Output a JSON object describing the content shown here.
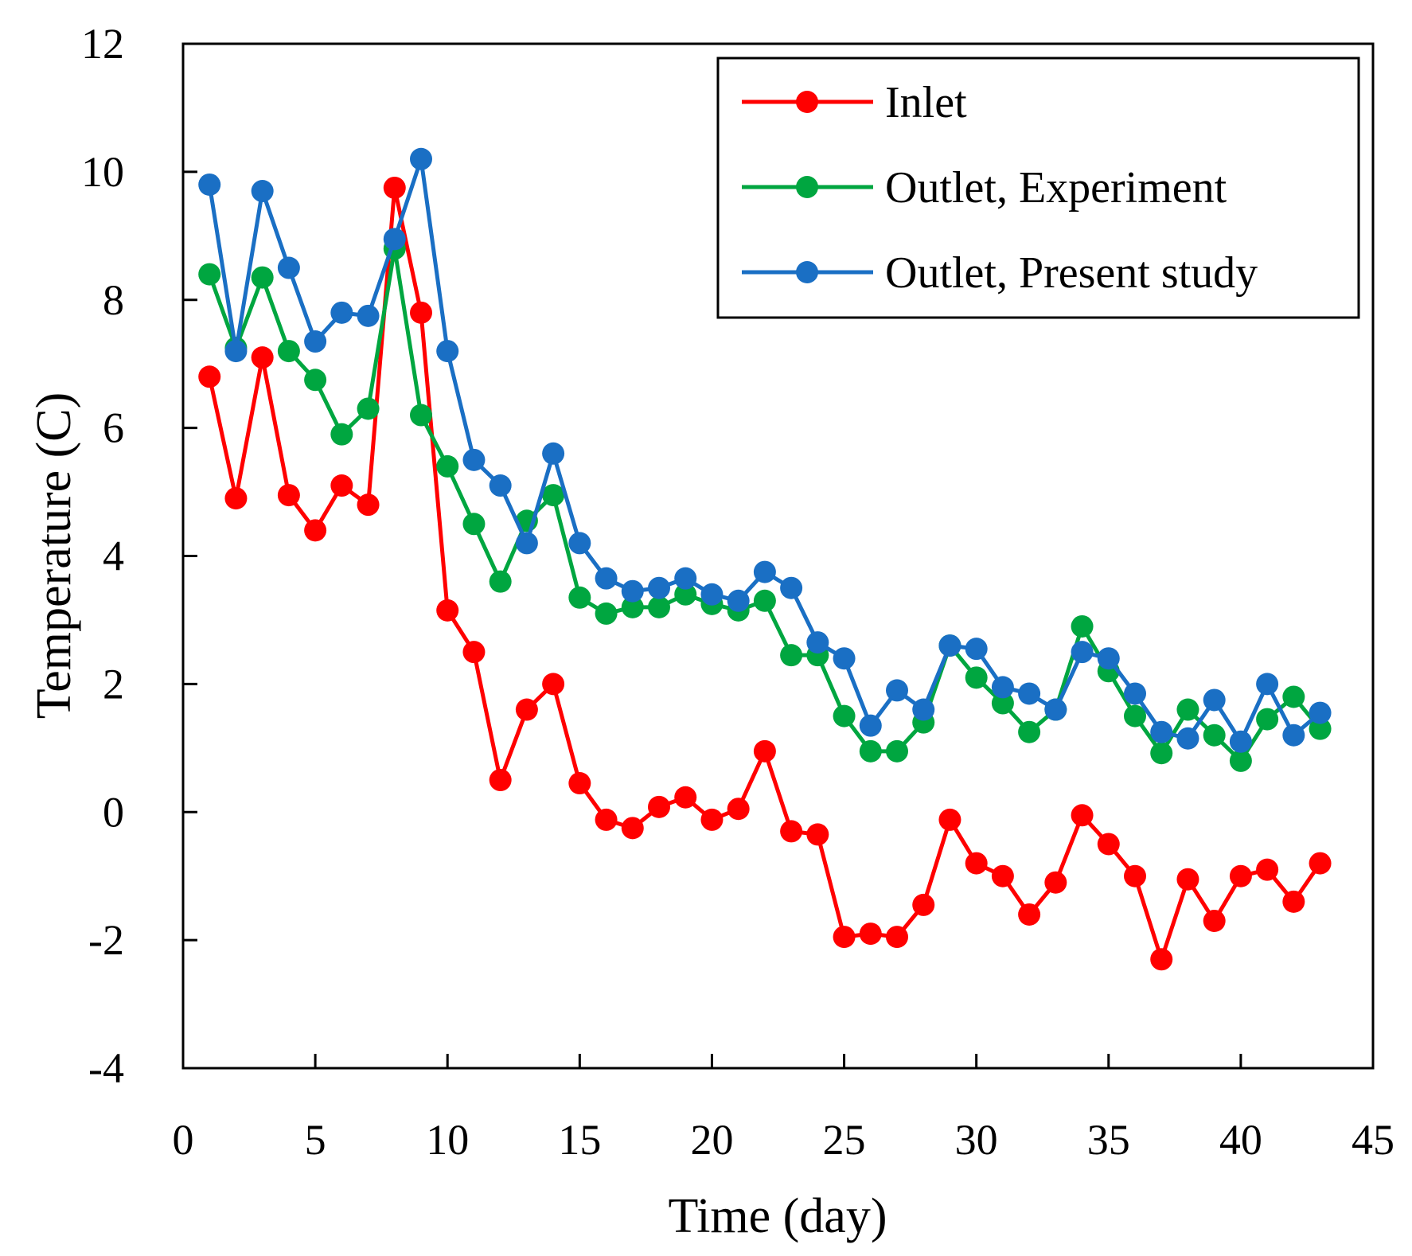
{
  "chart_data": {
    "type": "line",
    "xlabel": "Time (day)",
    "ylabel": "Temperature (C)",
    "xlim": [
      0,
      45
    ],
    "ylim": [
      -4,
      12
    ],
    "xticks": [
      0,
      5,
      10,
      15,
      20,
      25,
      30,
      35,
      40,
      45
    ],
    "yticks": [
      -4,
      -2,
      0,
      2,
      4,
      6,
      8,
      10,
      12
    ],
    "grid": false,
    "legend_position": "top-right",
    "x": [
      1,
      2,
      3,
      4,
      5,
      6,
      7,
      8,
      9,
      10,
      11,
      12,
      13,
      14,
      15,
      16,
      17,
      18,
      19,
      20,
      21,
      22,
      23,
      24,
      25,
      26,
      27,
      28,
      29,
      30,
      31,
      32,
      33,
      34,
      35,
      36,
      37,
      38,
      39,
      40,
      41,
      42,
      43
    ],
    "series": [
      {
        "name": "Inlet",
        "color": "#ff0000",
        "values": [
          6.8,
          4.9,
          7.1,
          4.95,
          4.4,
          5.1,
          4.8,
          9.75,
          7.8,
          3.15,
          2.5,
          0.5,
          1.6,
          2.0,
          0.45,
          -0.12,
          -0.25,
          0.08,
          0.23,
          -0.12,
          0.05,
          0.95,
          -0.3,
          -0.35,
          -1.95,
          -1.9,
          -1.95,
          -1.45,
          -0.12,
          -0.8,
          -1.0,
          -1.6,
          -1.1,
          -0.05,
          -0.5,
          -1.0,
          -2.3,
          -1.05,
          -1.7,
          -1.0,
          -0.9,
          -1.4,
          -0.8
        ]
      },
      {
        "name": "Outlet, Experiment",
        "color": "#00a640",
        "values": [
          8.4,
          7.25,
          8.35,
          7.2,
          6.75,
          5.9,
          6.3,
          8.8,
          6.2,
          5.4,
          4.5,
          3.6,
          4.55,
          4.95,
          3.35,
          3.1,
          3.2,
          3.2,
          3.4,
          3.25,
          3.15,
          3.3,
          2.45,
          2.45,
          1.5,
          0.95,
          0.95,
          1.4,
          2.6,
          2.1,
          1.7,
          1.25,
          1.6,
          2.9,
          2.2,
          1.5,
          0.92,
          1.6,
          1.2,
          0.8,
          1.45,
          1.8,
          1.3
        ]
      },
      {
        "name": "Outlet, Present study",
        "color": "#1a6fc4",
        "values": [
          9.8,
          7.2,
          9.7,
          8.5,
          7.35,
          7.8,
          7.75,
          8.95,
          10.2,
          7.2,
          5.5,
          5.1,
          4.2,
          5.6,
          4.2,
          3.65,
          3.45,
          3.5,
          3.65,
          3.4,
          3.3,
          3.75,
          3.5,
          2.65,
          2.4,
          1.35,
          1.9,
          1.6,
          2.6,
          2.55,
          1.95,
          1.85,
          1.6,
          2.5,
          2.4,
          1.85,
          1.25,
          1.15,
          1.75,
          1.1,
          2.0,
          1.2,
          1.55
        ]
      }
    ]
  }
}
